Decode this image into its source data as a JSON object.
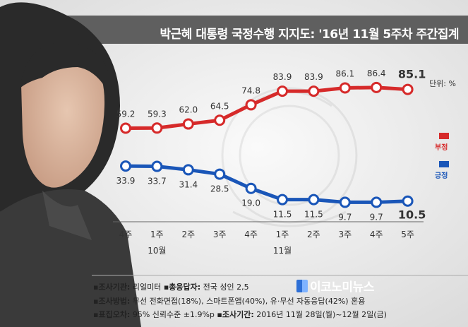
{
  "title": "박근혜 대통령 국정수행 지지도: '16년 11월 5주차 주간집계",
  "unit_label": "단위: %",
  "colors": {
    "negative": "#d62a2a",
    "positive": "#1a56b8",
    "title_bar": "#5f5f5f"
  },
  "chart_data": {
    "type": "line",
    "categories": [
      "4주",
      "1주",
      "2주",
      "3주",
      "4주",
      "1주",
      "2주",
      "3주",
      "4주",
      "5주"
    ],
    "month_labels": [
      {
        "label": "10월",
        "category_index": 1
      },
      {
        "label": "11월",
        "category_index": 5
      }
    ],
    "series": [
      {
        "name": "부정",
        "color": "#d62a2a",
        "values": [
          59.2,
          59.3,
          62.0,
          64.5,
          74.8,
          83.9,
          83.9,
          86.1,
          86.4,
          85.1
        ],
        "labels": [
          "59.2",
          "59.3",
          "62.0",
          "64.5",
          "74.8",
          "83.9",
          "83.9",
          "86.1",
          "86.4",
          "85.1"
        ]
      },
      {
        "name": "긍정",
        "color": "#1a56b8",
        "values": [
          33.9,
          33.7,
          31.4,
          28.5,
          19.0,
          11.5,
          11.5,
          9.7,
          9.7,
          10.5
        ],
        "labels": [
          "33.9",
          "33.7",
          "31.4",
          "28.5",
          "19.0",
          "11.5",
          "11.5",
          "9.7",
          "9.7",
          "10.5"
        ]
      }
    ],
    "legend_position": "right"
  },
  "footnotes": [
    {
      "key": "▪조사기관:",
      "text": " 리얼미터 ",
      "key2": "▪총응답자:",
      "text2": " 전국 성인 2,5"
    },
    {
      "key": "▪조사방법:",
      "text": " 무선 전화면접(18%), 스마트폰앱(40%), 유·무선 자동응답(42%) 혼용",
      "key2": "",
      "text2": ""
    },
    {
      "key": "▪표집오차:",
      "text": " 95% 신뢰수준 ±1.9%p ",
      "key2": "▪조사기간:",
      "text2": " 2016년 11월 28일(월)~12월 2일(금)"
    }
  ],
  "logo_text": "이코노미뉴스"
}
